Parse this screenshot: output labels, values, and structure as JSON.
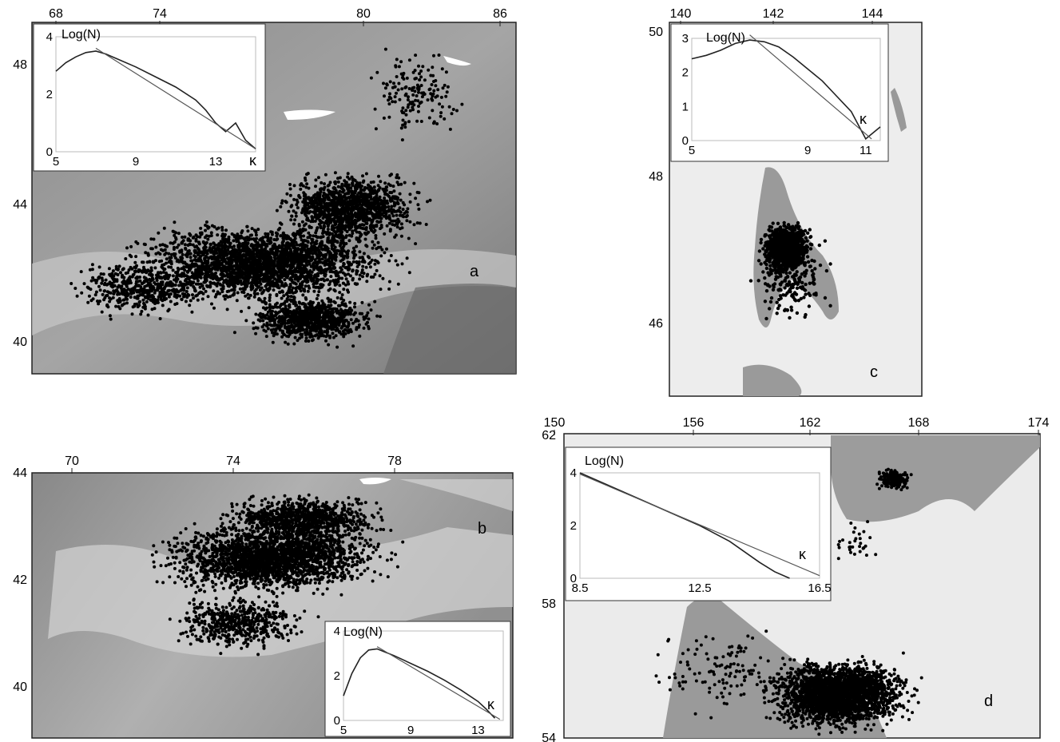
{
  "panels": [
    {
      "id": "a",
      "label": "a",
      "top_ticks": [
        "68",
        "74",
        "80",
        "86"
      ],
      "left_ticks": [
        "48",
        "44",
        "40"
      ],
      "inset": {
        "ylabel": "Log(N)",
        "xlabel": "κ",
        "y_ticks": [
          "4",
          "2",
          "0"
        ],
        "x_ticks": [
          "5",
          "9",
          "13"
        ]
      }
    },
    {
      "id": "b",
      "label": "b",
      "top_ticks": [
        "70",
        "74",
        "78"
      ],
      "left_ticks": [
        "44",
        "42",
        "40"
      ],
      "inset": {
        "ylabel": "Log(N)",
        "xlabel": "κ",
        "y_ticks": [
          "4",
          "2",
          "0"
        ],
        "x_ticks": [
          "5",
          "9",
          "13"
        ]
      }
    },
    {
      "id": "c",
      "label": "c",
      "top_ticks": [
        "140",
        "142",
        "144"
      ],
      "left_ticks": [
        "50",
        "48",
        "46"
      ],
      "inset": {
        "ylabel": "Log(N)",
        "xlabel": "κ",
        "y_ticks": [
          "3",
          "2",
          "1",
          "0"
        ],
        "x_ticks": [
          "5",
          "9",
          "11"
        ]
      }
    },
    {
      "id": "d",
      "label": "d",
      "top_ticks": [
        "150",
        "156",
        "162",
        "168",
        "174"
      ],
      "left_ticks": [
        "62",
        "58",
        "54"
      ],
      "inset": {
        "ylabel": "Log(N)",
        "xlabel": "κ",
        "y_ticks": [
          "4",
          "2",
          "0"
        ],
        "x_ticks": [
          "8.5",
          "12.5",
          "16.5"
        ]
      }
    }
  ],
  "chart_data": [
    {
      "type": "line",
      "panel": "a",
      "ylabel": "Log(N)",
      "xlabel": "κ",
      "xlim": [
        5,
        15
      ],
      "ylim": [
        0,
        4
      ],
      "series": [
        {
          "x": [
            5,
            5.5,
            6,
            6.5,
            7,
            7.5,
            8,
            9,
            10,
            11,
            12,
            12.5,
            13,
            13.5,
            14,
            14.5,
            15
          ],
          "y": [
            2.8,
            3.1,
            3.3,
            3.45,
            3.5,
            3.4,
            3.25,
            2.95,
            2.6,
            2.25,
            1.8,
            1.45,
            1.0,
            0.7,
            1.0,
            0.4,
            0.1
          ]
        },
        {
          "x": [
            7,
            15
          ],
          "y": [
            3.6,
            0.1
          ]
        }
      ]
    },
    {
      "type": "line",
      "panel": "b",
      "ylabel": "Log(N)",
      "xlabel": "κ",
      "xlim": [
        5,
        14.5
      ],
      "ylim": [
        0,
        4
      ],
      "series": [
        {
          "x": [
            5,
            5.5,
            6,
            6.5,
            7,
            7.5,
            8,
            9,
            10,
            11,
            12,
            13,
            13.5,
            14
          ],
          "y": [
            1.1,
            2.1,
            2.8,
            3.15,
            3.2,
            3.05,
            2.9,
            2.55,
            2.2,
            1.8,
            1.35,
            0.85,
            0.5,
            0.1
          ]
        },
        {
          "x": [
            7,
            14.3
          ],
          "y": [
            3.3,
            0.05
          ]
        }
      ]
    },
    {
      "type": "line",
      "panel": "c",
      "ylabel": "Log(N)",
      "xlabel": "κ",
      "xlim": [
        5,
        11.5
      ],
      "ylim": [
        0,
        3
      ],
      "series": [
        {
          "x": [
            5,
            5.5,
            6,
            6.5,
            7,
            7.5,
            8,
            8.5,
            9,
            9.5,
            10,
            10.5,
            11,
            11.5
          ],
          "y": [
            2.4,
            2.5,
            2.65,
            2.85,
            2.95,
            2.9,
            2.75,
            2.45,
            2.1,
            1.75,
            1.3,
            0.85,
            0.05,
            0.4
          ]
        },
        {
          "x": [
            7,
            11.2
          ],
          "y": [
            3.1,
            0.05
          ]
        }
      ]
    },
    {
      "type": "line",
      "panel": "d",
      "ylabel": "Log(N)",
      "xlabel": "κ",
      "xlim": [
        8.5,
        16.5
      ],
      "ylim": [
        0,
        4
      ],
      "series": [
        {
          "x": [
            8.5,
            9.5,
            10.5,
            11.5,
            12.5,
            13.5,
            14.5,
            15,
            15.5
          ],
          "y": [
            4.0,
            3.5,
            3.0,
            2.5,
            2.0,
            1.4,
            0.6,
            0.25,
            0.0
          ]
        },
        {
          "x": [
            8.5,
            16.5
          ],
          "y": [
            3.95,
            0.1
          ]
        }
      ]
    }
  ]
}
